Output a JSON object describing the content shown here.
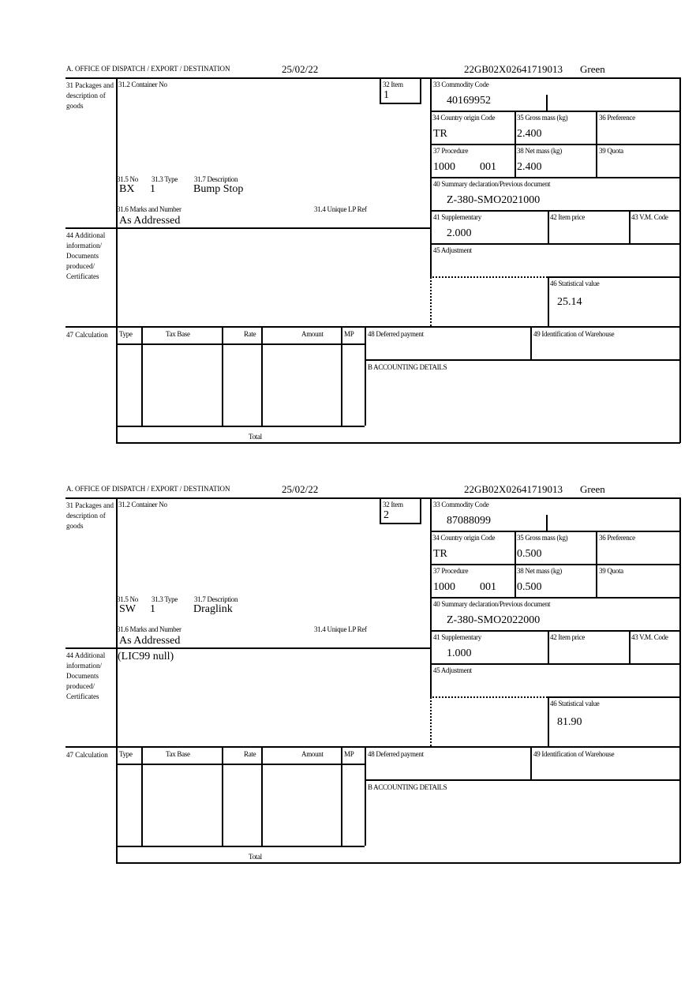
{
  "labels": {
    "office": "A. OFFICE OF DISPATCH / EXPORT / DESTINATION",
    "packages": "31 Packages and description of goods",
    "container_no": "31.2 Container No",
    "item": "32 Item",
    "no": "31.5 No",
    "type": "31.3 Type",
    "description": "31.7 Description",
    "marks": "31.6 Marks and Number",
    "unique_ref": "31.4 Unique LP Ref",
    "commodity_code": "33 Commodity Code",
    "country_origin": "34 Country origin Code",
    "gross_mass": "35 Gross mass (kg)",
    "preference": "36 Preference",
    "procedure": "37 Procedure",
    "net_mass": "38 Net mass (kg)",
    "quota": "39 Quota",
    "summary_decl": "40 Summary declaration/Previous document",
    "supplementary": "41 Supplementary",
    "item_price": "42 Item price",
    "vm_code": "43 V.M. Code",
    "additional_info": "44 Additional information/ Documents produced/ Certificates",
    "adjustment": "45 Adjustment",
    "statistical_value": "46 Statistical value",
    "calculation": "47 Calculation",
    "calc_type": "Type",
    "calc_tax_base": "Tax Base",
    "calc_rate": "Rate",
    "calc_amount": "Amount",
    "calc_mp": "MP",
    "calc_total": "Total",
    "deferred_payment": "48 Deferred payment",
    "warehouse": "49 Identification of Warehouse",
    "accounting": "B ACCOUNTING DETAILS"
  },
  "forms": [
    {
      "date": "25/02/22",
      "reference": "22GB02X02641719013",
      "route": "Green",
      "item": "1",
      "no": "BX",
      "type": "1",
      "description": "Bump Stop",
      "marks": "As Addressed",
      "commodity_code": "40169952",
      "country_origin": "TR",
      "gross_mass": "2.400",
      "procedure": "1000",
      "procedure_extra": "001",
      "net_mass": "2.400",
      "summary_decl": "Z-380-SMO2021000",
      "supplementary": "2.000",
      "additional_info": "",
      "statistical_value": "25.14"
    },
    {
      "date": "25/02/22",
      "reference": "22GB02X02641719013",
      "route": "Green",
      "item": "2",
      "no": "SW",
      "type": "1",
      "description": "Draglink",
      "marks": "As Addressed",
      "commodity_code": "87088099",
      "country_origin": "TR",
      "gross_mass": "0.500",
      "procedure": "1000",
      "procedure_extra": "001",
      "net_mass": "0.500",
      "summary_decl": "Z-380-SMO2022000",
      "supplementary": "1.000",
      "additional_info": "(LIC99 null)",
      "statistical_value": "81.90"
    }
  ]
}
